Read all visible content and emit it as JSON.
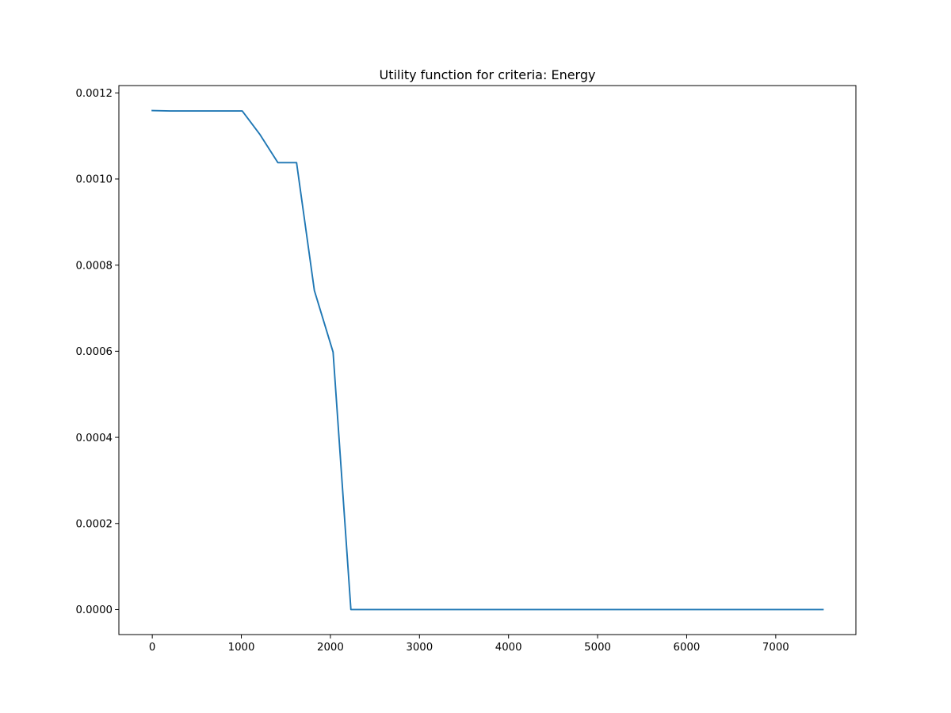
{
  "chart_data": {
    "type": "line",
    "title": "Utility function for criteria: Energy",
    "xlabel": "",
    "ylabel": "",
    "xlim": [
      -375,
      7900
    ],
    "ylim": [
      -5.8e-05,
      0.001217
    ],
    "grid": false,
    "legend": false,
    "x_ticks": [
      {
        "value": 0,
        "label": "0"
      },
      {
        "value": 1000,
        "label": "1000"
      },
      {
        "value": 2000,
        "label": "2000"
      },
      {
        "value": 3000,
        "label": "3000"
      },
      {
        "value": 4000,
        "label": "4000"
      },
      {
        "value": 5000,
        "label": "5000"
      },
      {
        "value": 6000,
        "label": "6000"
      },
      {
        "value": 7000,
        "label": "7000"
      }
    ],
    "y_ticks": [
      {
        "value": 0.0,
        "label": "0.0000"
      },
      {
        "value": 0.0002,
        "label": "0.0002"
      },
      {
        "value": 0.0004,
        "label": "0.0004"
      },
      {
        "value": 0.0006,
        "label": "0.0006"
      },
      {
        "value": 0.0008,
        "label": "0.0008"
      },
      {
        "value": 0.001,
        "label": "0.0010"
      },
      {
        "value": 0.0012,
        "label": "0.0012"
      }
    ],
    "series": [
      {
        "color": "#1f77b4",
        "x": [
          0,
          200,
          1010,
          1210,
          1410,
          1620,
          1820,
          2030,
          2230,
          7530
        ],
        "y": [
          0.001159,
          0.001158,
          0.001158,
          0.001103,
          0.001038,
          0.001038,
          0.000741,
          0.000598,
          0.0,
          0.0
        ]
      }
    ]
  }
}
